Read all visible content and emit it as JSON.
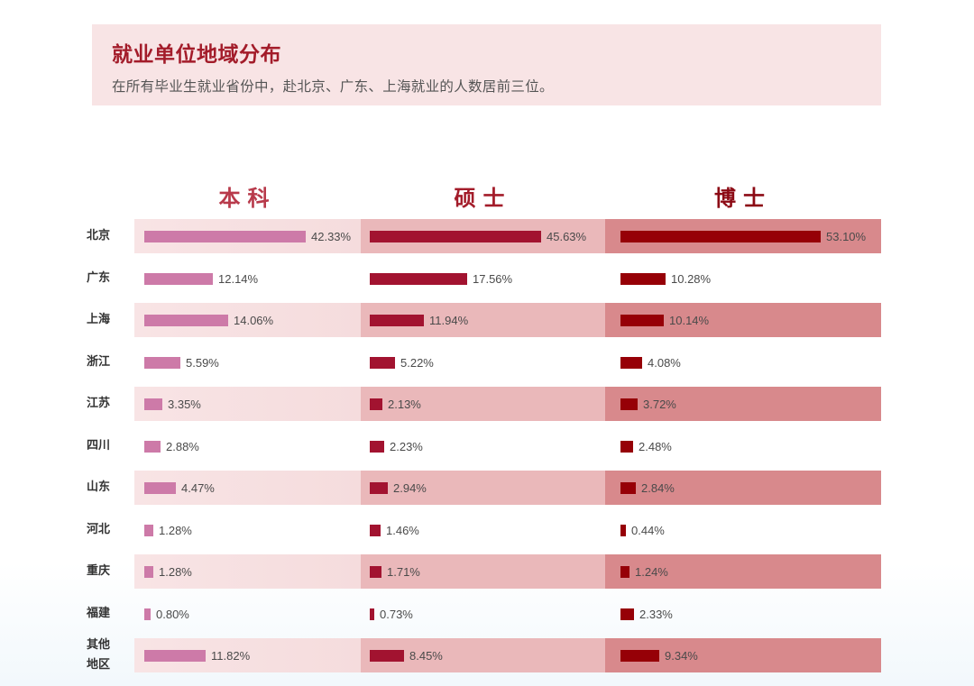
{
  "header": {
    "title": "就业单位地域分布",
    "subtitle": "在所有毕业生就业省份中，赴北京、广东、上海就业的人数居前三位。"
  },
  "colors": {
    "title_red": "#a31c2a",
    "bachelor_bar": "#cd7aa8",
    "master_bar": "#a21330",
    "doctor_bar": "#960007",
    "bachelor_band": "#f8e2e3",
    "master_band": "#eab8ba",
    "doctor_band": "#d8898c",
    "bachelor_header": "#b83a4b",
    "master_header": "#a31c2a",
    "doctor_header": "#8c0a14"
  },
  "columns": [
    {
      "label": "本科"
    },
    {
      "label": "硕士"
    },
    {
      "label": "博士"
    }
  ],
  "rows": [
    {
      "label": "北京",
      "bachelor": "42.33%",
      "master": "45.63%",
      "doctor": "53.10%"
    },
    {
      "label": "广东",
      "bachelor": "12.14%",
      "master": "17.56%",
      "doctor": "10.28%"
    },
    {
      "label": "上海",
      "bachelor": "14.06%",
      "master": "11.94%",
      "doctor": "10.14%"
    },
    {
      "label": "浙江",
      "bachelor": "5.59%",
      "master": "5.22%",
      "doctor": "4.08%"
    },
    {
      "label": "江苏",
      "bachelor": "3.35%",
      "master": "2.13%",
      "doctor": "3.72%"
    },
    {
      "label": "四川",
      "bachelor": "2.88%",
      "master": "2.23%",
      "doctor": "2.48%"
    },
    {
      "label": "山东",
      "bachelor": "4.47%",
      "master": "2.94%",
      "doctor": "2.84%"
    },
    {
      "label": "河北",
      "bachelor": "1.28%",
      "master": "1.46%",
      "doctor": "0.44%"
    },
    {
      "label": "重庆",
      "bachelor": "1.28%",
      "master": "1.71%",
      "doctor": "1.24%"
    },
    {
      "label": "福建",
      "bachelor": "0.80%",
      "master": "0.73%",
      "doctor": "2.33%"
    },
    {
      "label_line1": "其他",
      "label_line2": "地区",
      "bachelor": "11.82%",
      "master": "8.45%",
      "doctor": "9.34%"
    }
  ],
  "chart_data": {
    "type": "bar",
    "orientation": "horizontal",
    "title": "就业单位地域分布",
    "subtitle": "在所有毕业生就业省份中，赴北京、广东、上海就业的人数居前三位。",
    "categories": [
      "北京",
      "广东",
      "上海",
      "浙江",
      "江苏",
      "四川",
      "山东",
      "河北",
      "重庆",
      "福建",
      "其他地区"
    ],
    "series": [
      {
        "name": "本科",
        "values": [
          42.33,
          12.14,
          14.06,
          5.59,
          3.35,
          2.88,
          4.47,
          1.28,
          1.28,
          0.8,
          11.82
        ]
      },
      {
        "name": "硕士",
        "values": [
          45.63,
          17.56,
          11.94,
          5.22,
          2.13,
          2.23,
          2.94,
          1.46,
          1.71,
          0.73,
          8.45
        ]
      },
      {
        "name": "博士",
        "values": [
          53.1,
          10.28,
          10.14,
          4.08,
          3.72,
          2.48,
          2.84,
          0.44,
          1.24,
          2.33,
          9.34
        ]
      }
    ],
    "unit": "%",
    "layout": "three side-by-side panels (small multiples), alternating row bands, data labels right of bars",
    "xlabel": "",
    "ylabel": ""
  }
}
